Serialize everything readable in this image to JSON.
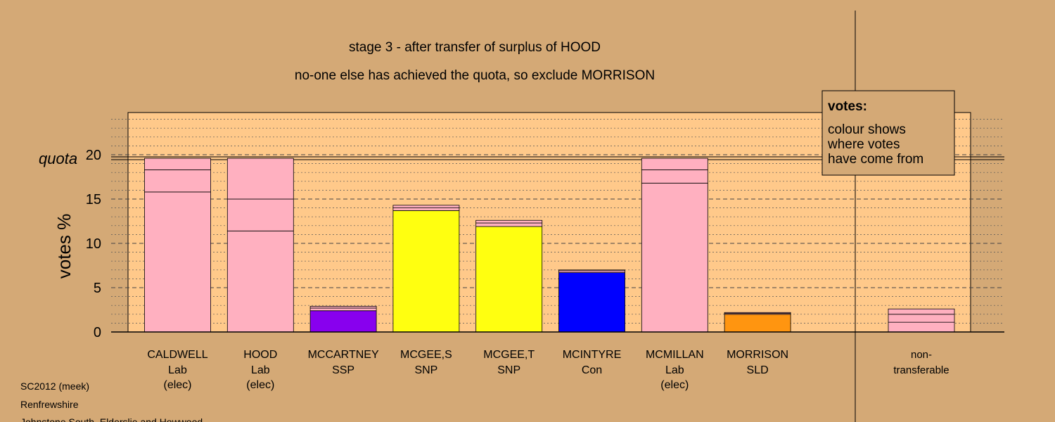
{
  "title_line1": "stage 3 - after transfer of surplus of HOOD",
  "title_line2": "no-one else has achieved the quota, so exclude MORRISON",
  "footer": {
    "line1": "SC2012 (meek)",
    "line2": "Renfrewshire",
    "line3": "Johnstone South, Elderslie and Howwood"
  },
  "legend": {
    "heading": "votes:",
    "lines": [
      "colour shows",
      "where votes",
      "have come from"
    ]
  },
  "colors": {
    "page_bg": "#d4a976",
    "plot_bg": "#ffc98a",
    "Lab": "#ffb0c0",
    "SSP": "#8800ee",
    "SNP": "#ffff10",
    "Con": "#0000ff",
    "SLD": "#ff9510"
  },
  "chart_data": {
    "type": "bar",
    "stacked": true,
    "ylabel": "votes %",
    "quota_label": "quota",
    "quota": 19.6,
    "ylim": [
      0,
      25
    ],
    "yticks": [
      0,
      5,
      10,
      15,
      20
    ],
    "grid": "dashed major, dotted minor",
    "legend_position": "top-right",
    "categories": [
      {
        "name": "CALDWELL",
        "party": "Lab",
        "status": "(elec)",
        "segments": [
          {
            "value": 15.8,
            "color": "#ffb0c0"
          },
          {
            "value": 2.5,
            "color": "#ffb0c0"
          },
          {
            "value": 1.3,
            "color": "#ffb0c0"
          }
        ]
      },
      {
        "name": "HOOD",
        "party": "Lab",
        "status": "(elec)",
        "segments": [
          {
            "value": 11.4,
            "color": "#ffb0c0"
          },
          {
            "value": 3.6,
            "color": "#ffb0c0"
          },
          {
            "value": 4.6,
            "color": "#ffb0c0"
          }
        ]
      },
      {
        "name": "MCCARTNEY",
        "party": "SSP",
        "status": "",
        "segments": [
          {
            "value": 2.4,
            "color": "#8800ee"
          },
          {
            "value": 0.3,
            "color": "#ffb0c0"
          },
          {
            "value": 0.2,
            "color": "#ffb0c0"
          }
        ]
      },
      {
        "name": "MCGEE,S",
        "party": "SNP",
        "status": "",
        "segments": [
          {
            "value": 13.7,
            "color": "#ffff10"
          },
          {
            "value": 0.3,
            "color": "#ffb0c0"
          },
          {
            "value": 0.3,
            "color": "#ffb0c0"
          }
        ]
      },
      {
        "name": "MCGEE,T",
        "party": "SNP",
        "status": "",
        "segments": [
          {
            "value": 11.9,
            "color": "#ffff10"
          },
          {
            "value": 0.4,
            "color": "#ffb0c0"
          },
          {
            "value": 0.3,
            "color": "#ffb0c0"
          }
        ]
      },
      {
        "name": "MCINTYRE",
        "party": "Con",
        "status": "",
        "segments": [
          {
            "value": 6.7,
            "color": "#0000ff"
          },
          {
            "value": 0.2,
            "color": "#ffb0c0"
          },
          {
            "value": 0.1,
            "color": "#ffb0c0"
          }
        ]
      },
      {
        "name": "MCMILLAN",
        "party": "Lab",
        "status": "(elec)",
        "segments": [
          {
            "value": 16.8,
            "color": "#ffb0c0"
          },
          {
            "value": 1.5,
            "color": "#ffb0c0"
          },
          {
            "value": 1.3,
            "color": "#ffb0c0"
          }
        ]
      },
      {
        "name": "MORRISON",
        "party": "SLD",
        "status": "",
        "segments": [
          {
            "value": 2.0,
            "color": "#ff9510"
          },
          {
            "value": 0.1,
            "color": "#ffb0c0"
          },
          {
            "value": 0.1,
            "color": "#ffb0c0"
          }
        ]
      }
    ],
    "nontransferable": {
      "label_line1": "non-",
      "label_line2": "transferable",
      "segments": [
        {
          "value": 1.1,
          "color": "#ffb0c0"
        },
        {
          "value": 0.9,
          "color": "#ffb0c0"
        },
        {
          "value": 0.6,
          "color": "#ffb0c0"
        }
      ]
    }
  }
}
